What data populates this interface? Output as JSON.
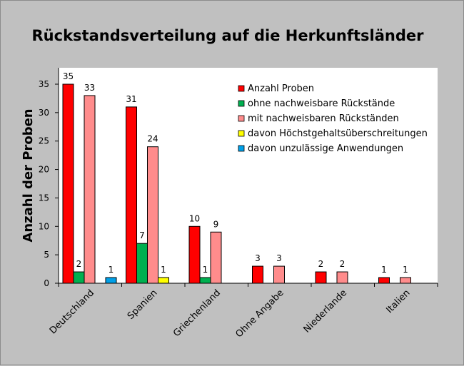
{
  "chart_data": {
    "type": "bar",
    "title": "Rückstandsverteilung auf die Herkunftsländer",
    "ylabel": "Anzahl der Proben",
    "xlabel": "",
    "ylim": [
      0,
      35
    ],
    "yticks": [
      0,
      5,
      10,
      15,
      20,
      25,
      30,
      35
    ],
    "grid": false,
    "legend_position": "top-right",
    "categories": [
      "Deutschland",
      "Spanien",
      "Griechenland",
      "Ohne Angabe",
      "Niederlande",
      "Italien"
    ],
    "series": [
      {
        "name": "Anzahl Proben",
        "color": "#ff0000",
        "values": [
          35,
          31,
          10,
          3,
          2,
          1
        ]
      },
      {
        "name": "ohne nachweisbare Rückstände",
        "color": "#00b050",
        "values": [
          2,
          7,
          1,
          0,
          0,
          0
        ]
      },
      {
        "name": "mit nachweisbaren Rückständen",
        "color": "#ff8c8c",
        "values": [
          33,
          24,
          9,
          3,
          2,
          1
        ]
      },
      {
        "name": "davon Höchstgehaltsüberschreitungen",
        "color": "#ffff00",
        "values": [
          0,
          1,
          0,
          0,
          0,
          0
        ]
      },
      {
        "name": "davon unzulässige Anwendungen",
        "color": "#00a0e8",
        "values": [
          1,
          0,
          0,
          0,
          0,
          0
        ]
      }
    ]
  }
}
